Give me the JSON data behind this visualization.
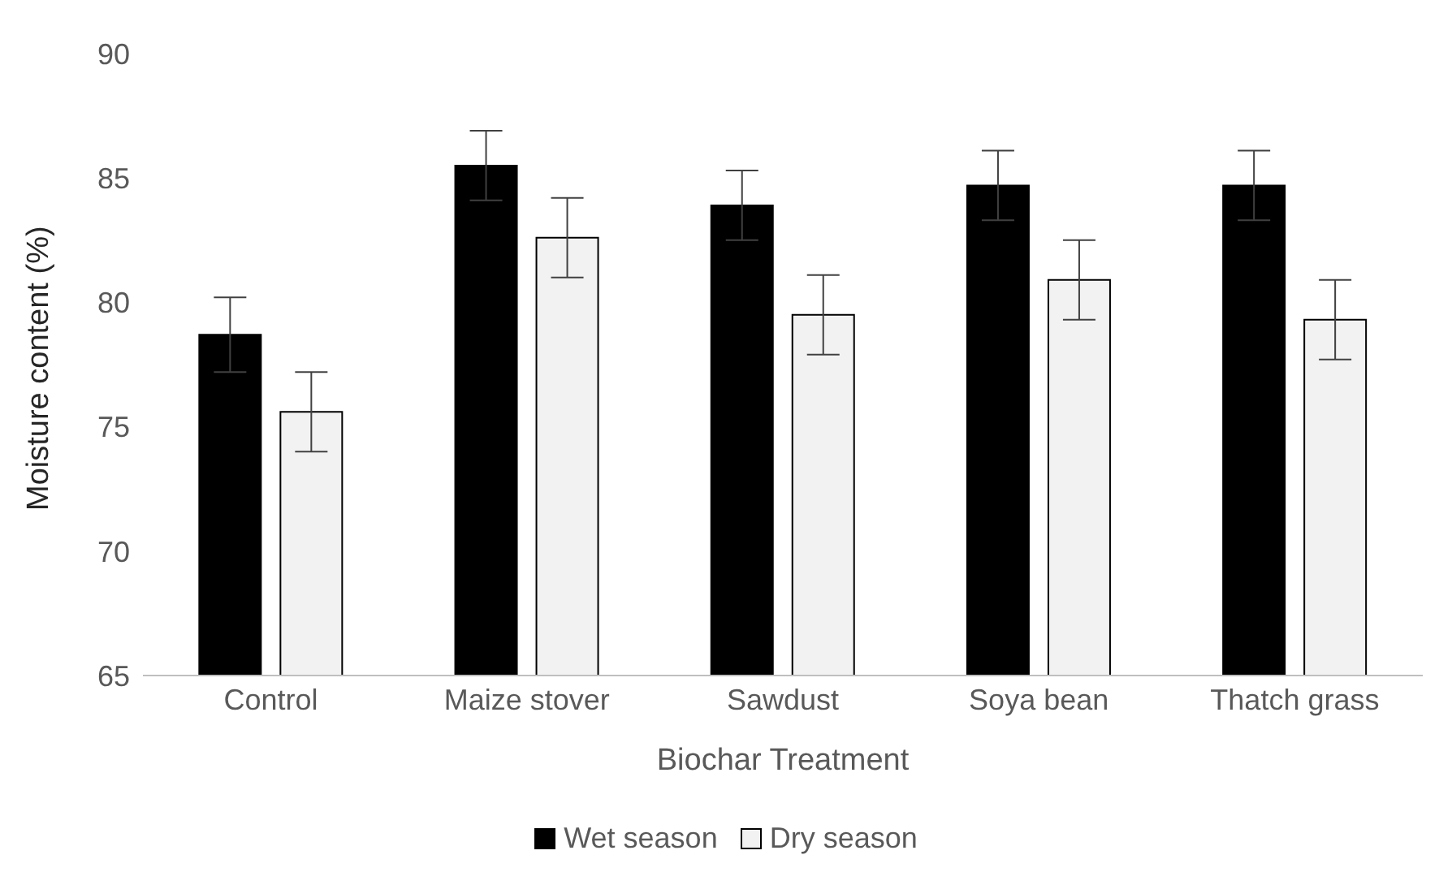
{
  "chart_data": {
    "type": "bar",
    "xlabel": "Biochar Treatment",
    "ylabel": "Moisture content (%)",
    "categories": [
      "Control",
      "Maize stover",
      "Sawdust",
      "Soya bean",
      "Thatch grass"
    ],
    "series": [
      {
        "name": "Wet season",
        "color": "#000000",
        "values": [
          78.7,
          85.5,
          83.9,
          84.7,
          84.7
        ],
        "errors": [
          1.5,
          1.4,
          1.4,
          1.4,
          1.4
        ]
      },
      {
        "name": "Dry season",
        "color": "#f2f2f2",
        "values": [
          75.6,
          82.6,
          79.5,
          80.9,
          79.3
        ],
        "errors": [
          1.6,
          1.6,
          1.6,
          1.6,
          1.6
        ]
      }
    ],
    "ylim": [
      65,
      90
    ],
    "yticks": [
      65,
      70,
      75,
      80,
      85,
      90
    ],
    "grid": false,
    "legend": "bottom"
  }
}
